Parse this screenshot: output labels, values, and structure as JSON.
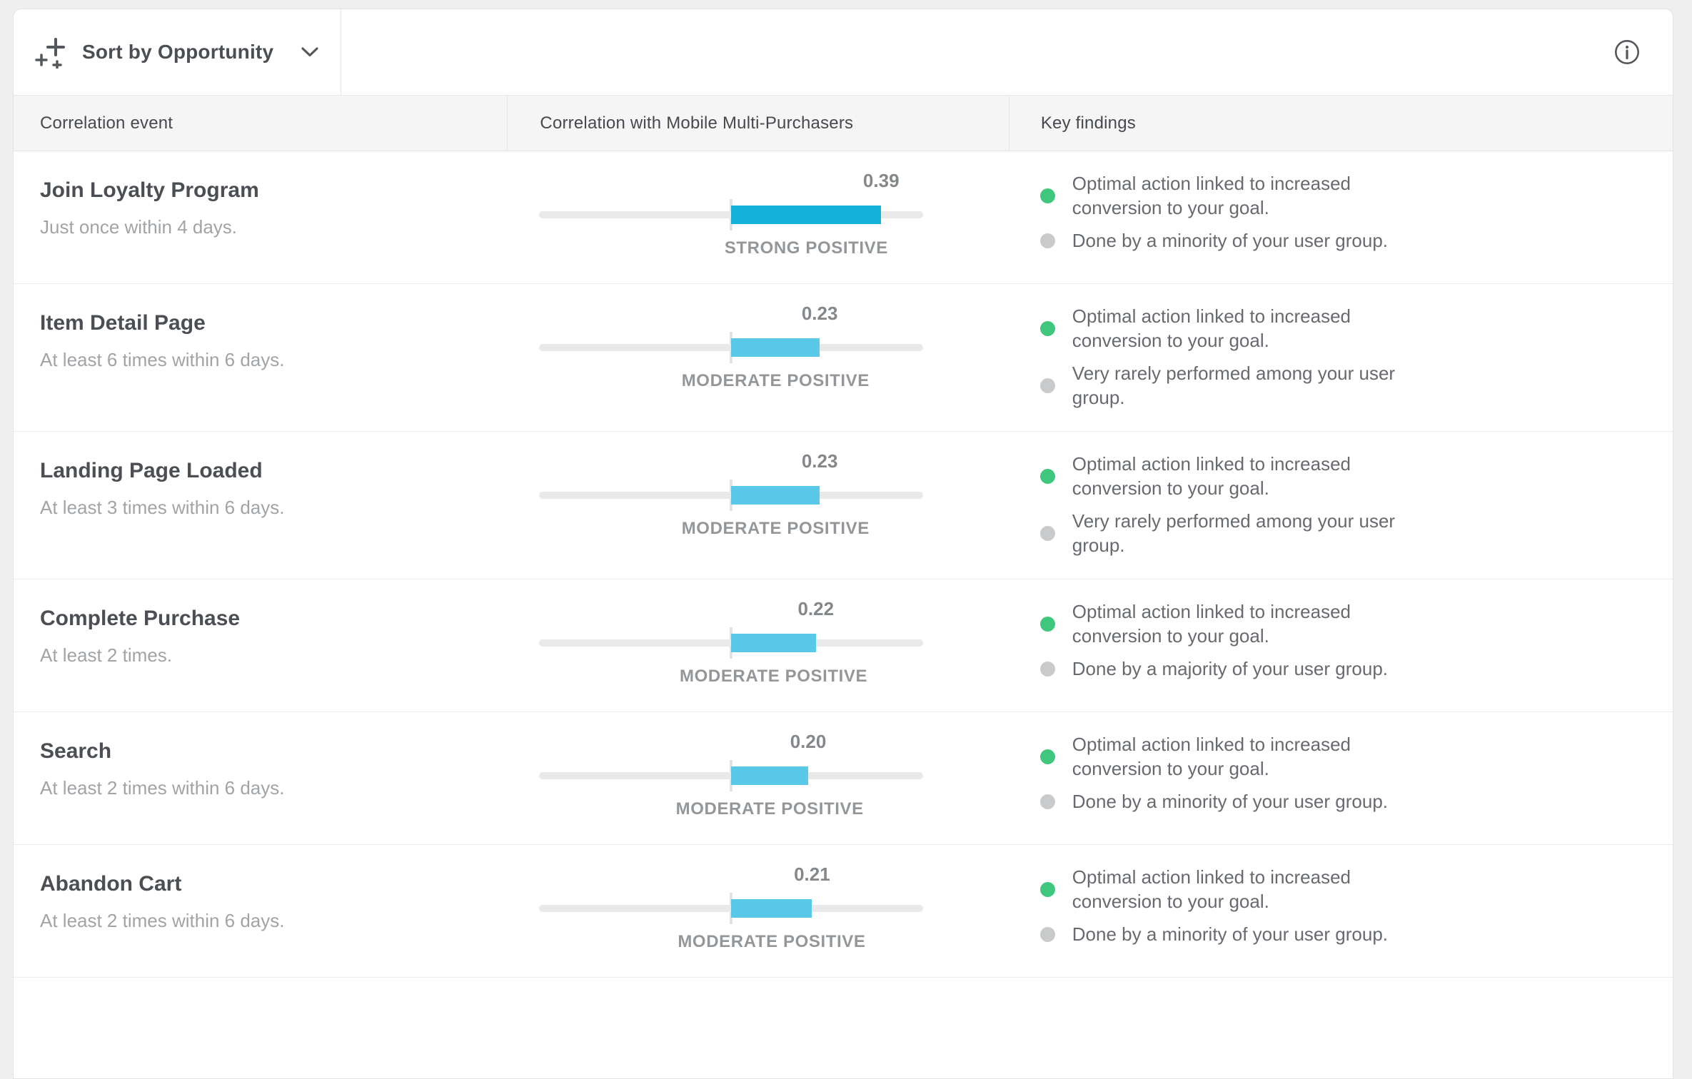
{
  "toolbar": {
    "sort_button_label": "Sort by Opportunity"
  },
  "table": {
    "headers": {
      "event": "Correlation event",
      "correlation": "Correlation with Mobile Multi-Purchasers",
      "findings": "Key findings"
    },
    "correlation_scale_max": 0.5,
    "rows": [
      {
        "event": "Join Loyalty Program",
        "criteria": "Just once within 4 days.",
        "correlation": 0.39,
        "correlation_display": "0.39",
        "strength": "STRONG POSITIVE",
        "strength_level": "strong",
        "findings": [
          {
            "type": "positive",
            "text": "Optimal action linked to increased\nconversion to your goal."
          },
          {
            "type": "neutral",
            "text": "Done by a minority of your user group."
          }
        ]
      },
      {
        "event": "Item Detail Page",
        "criteria": "At least 6 times within 6 days.",
        "correlation": 0.23,
        "correlation_display": "0.23",
        "strength": "MODERATE POSITIVE",
        "strength_level": "moderate",
        "findings": [
          {
            "type": "positive",
            "text": "Optimal action linked to increased\nconversion to your goal."
          },
          {
            "type": "neutral",
            "text": "Very rarely performed among your user\ngroup."
          }
        ]
      },
      {
        "event": "Landing Page Loaded",
        "criteria": "At least 3 times within 6 days.",
        "correlation": 0.23,
        "correlation_display": "0.23",
        "strength": "MODERATE POSITIVE",
        "strength_level": "moderate",
        "findings": [
          {
            "type": "positive",
            "text": "Optimal action linked to increased\nconversion to your goal."
          },
          {
            "type": "neutral",
            "text": "Very rarely performed among your user\ngroup."
          }
        ]
      },
      {
        "event": "Complete Purchase",
        "criteria": "At least 2 times.",
        "correlation": 0.22,
        "correlation_display": "0.22",
        "strength": "MODERATE POSITIVE",
        "strength_level": "moderate",
        "findings": [
          {
            "type": "positive",
            "text": "Optimal action linked to increased\nconversion to your goal."
          },
          {
            "type": "neutral",
            "text": "Done by a majority of your user group."
          }
        ]
      },
      {
        "event": "Search",
        "criteria": "At least 2 times within 6 days.",
        "correlation": 0.2,
        "correlation_display": "0.20",
        "strength": "MODERATE POSITIVE",
        "strength_level": "moderate",
        "findings": [
          {
            "type": "positive",
            "text": "Optimal action linked to increased\nconversion to your goal."
          },
          {
            "type": "neutral",
            "text": "Done by a minority of your user group."
          }
        ]
      },
      {
        "event": "Abandon Cart",
        "criteria": "At least 2 times within 6 days.",
        "correlation": 0.21,
        "correlation_display": "0.21",
        "strength": "MODERATE POSITIVE",
        "strength_level": "moderate",
        "findings": [
          {
            "type": "positive",
            "text": "Optimal action linked to increased\nconversion to your goal."
          },
          {
            "type": "neutral",
            "text": "Done by a minority of your user group."
          }
        ]
      }
    ]
  },
  "colors": {
    "bar_strong": "#14b1db",
    "bar_moderate": "#5ac8e8",
    "positive_bullet": "#3fc87d",
    "neutral_bullet": "#c9cacb",
    "bar_track": "#e9e9e9"
  },
  "icons": {
    "sort": "sparkle-plus-icon",
    "chevron": "chevron-down-icon",
    "info": "info-circle-icon"
  }
}
